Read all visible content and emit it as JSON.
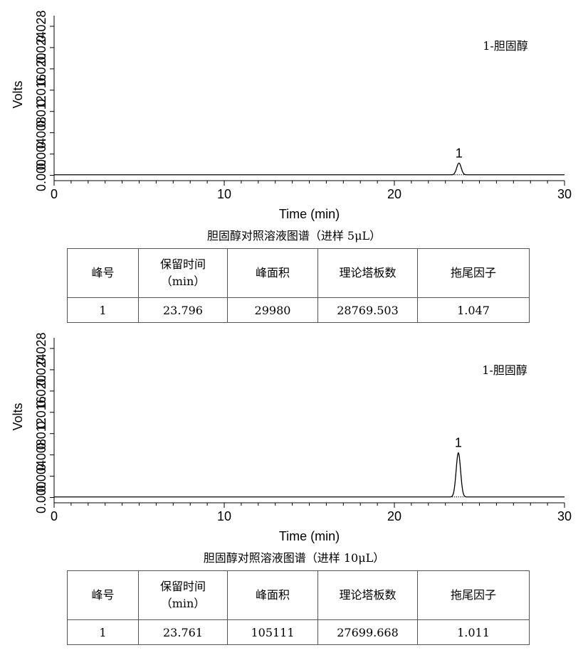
{
  "chart_data": [
    {
      "type": "line",
      "xlabel": "Time (min)",
      "ylabel": "Volts",
      "xlim": [
        0,
        30
      ],
      "xticks": [
        "0",
        "10",
        "20",
        "30"
      ],
      "yticks": [
        "0.000",
        "0.004",
        "0.008",
        "0.012",
        "0.016",
        "0.020",
        "0.024",
        "0.028"
      ],
      "ylim": [
        -0.001,
        0.03
      ],
      "annotation": "1-胆固醇",
      "series": [
        {
          "baseline": 0.0001,
          "peaks": [
            {
              "label": "1",
              "x": 23.796,
              "height": 0.0022,
              "width": 0.13
            }
          ]
        }
      ],
      "caption": "胆固醇对照溶液图谱（进样 5μL）",
      "table": {
        "headers": [
          [
            "峰号"
          ],
          [
            "保留时间",
            "（min）"
          ],
          [
            "峰面积"
          ],
          [
            "理论塔板数"
          ],
          [
            "拖尾因子"
          ]
        ],
        "rows": [
          [
            "1",
            "23.796",
            "29980",
            "28769.503",
            "1.047"
          ]
        ]
      }
    },
    {
      "type": "line",
      "xlabel": "Time (min)",
      "ylabel": "Volts",
      "xlim": [
        0,
        30
      ],
      "xticks": [
        "0",
        "10",
        "20",
        "30"
      ],
      "yticks": [
        "0.000",
        "0.004",
        "0.008",
        "0.012",
        "0.016",
        "0.020",
        "0.024",
        "0.028"
      ],
      "ylim": [
        -0.001,
        0.03
      ],
      "annotation": "1-胆固醇",
      "series": [
        {
          "baseline": 0.0001,
          "peaks": [
            {
              "label": "1",
              "x": 23.761,
              "height": 0.0083,
              "width": 0.13
            }
          ]
        }
      ],
      "caption": "胆固醇对照溶液图谱（进样 10μL）",
      "table": {
        "headers": [
          [
            "峰号"
          ],
          [
            "保留时间",
            "（min）"
          ],
          [
            "峰面积"
          ],
          [
            "理论塔板数"
          ],
          [
            "拖尾因子"
          ]
        ],
        "rows": [
          [
            "1",
            "23.761",
            "105111",
            "27699.668",
            "1.011"
          ]
        ]
      }
    }
  ]
}
